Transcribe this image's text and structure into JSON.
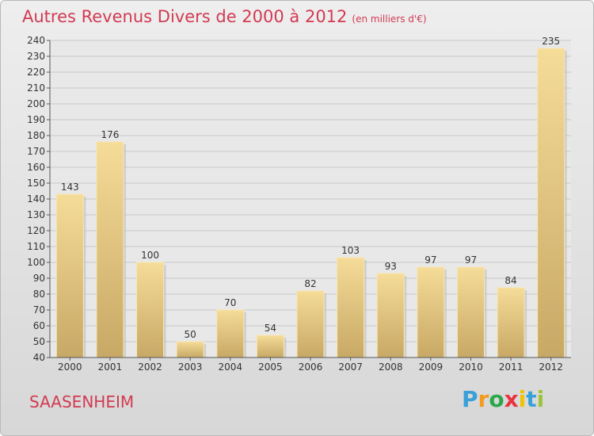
{
  "chart_data": {
    "type": "bar",
    "title": "Autres Revenus Divers de 2000 à 2012",
    "unit": "(en milliers d'€)",
    "categories": [
      "2000",
      "2001",
      "2002",
      "2003",
      "2004",
      "2005",
      "2006",
      "2007",
      "2008",
      "2009",
      "2010",
      "2011",
      "2012"
    ],
    "values": [
      143,
      176,
      100,
      50,
      70,
      54,
      82,
      103,
      93,
      97,
      97,
      84,
      235
    ],
    "ylim": [
      40,
      240
    ],
    "yticks": [
      40,
      50,
      60,
      70,
      80,
      90,
      100,
      110,
      120,
      130,
      140,
      150,
      160,
      170,
      180,
      190,
      200,
      210,
      220,
      230,
      240
    ],
    "grid": true,
    "bar_color": "#ecce85"
  },
  "footer": {
    "commune": "SAASENHEIM",
    "logo_letters": [
      "P",
      "r",
      "o",
      "x",
      "i",
      "t",
      "i"
    ],
    "logo_colors": [
      "#3aa0d8",
      "#f29b1d",
      "#2aa84a",
      "#e8343f",
      "#f2c200",
      "#3aa0d8",
      "#9bc43b"
    ]
  }
}
